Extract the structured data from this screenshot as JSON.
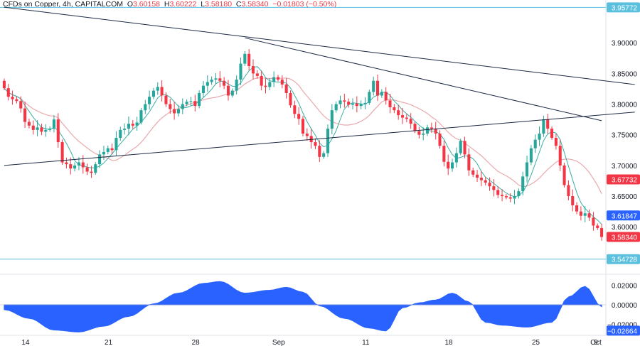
{
  "header": {
    "symbol": "CFDs on Copper, 4h, CAPITALCOM",
    "o_label": "O",
    "o_value": "3.60158",
    "h_label": "H",
    "h_value": "3.60222",
    "l_label": "L",
    "l_value": "3.58180",
    "c_label": "C",
    "c_value": "3.58340",
    "change": "−0.01803 (−0.50%)"
  },
  "colors": {
    "up": "#26a69a",
    "down": "#f23645",
    "ma_fast": "#26a69a",
    "ma_slow": "#e8a0a4",
    "trendline": "#1c2a44",
    "oscillator": "#2962ff",
    "level_line": "#5bc0de",
    "price_badge_red": "#f23645",
    "price_badge_blue": "#2962ff",
    "level_badge": "#5bc0de"
  },
  "chart_data": [
    {
      "type": "candlestick",
      "x_ticks": [
        "14",
        "21",
        "28",
        "Sep",
        "11",
        "18",
        "25",
        "Oct",
        "9"
      ],
      "y_ticks": [
        "3.90000",
        "3.85000",
        "3.80000",
        "3.75000",
        "3.70000",
        "3.65000",
        "3.60000"
      ],
      "ylim": [
        3.5435,
        3.9605
      ],
      "price_labels": [
        {
          "value": 3.95772,
          "text": "3.95772",
          "kind": "level"
        },
        {
          "value": 3.67732,
          "text": "3.67732",
          "kind": "red"
        },
        {
          "value": 3.61847,
          "text": "3.61847",
          "kind": "blue"
        },
        {
          "value": 3.5834,
          "text": "3.58340",
          "kind": "red"
        },
        {
          "value": 3.54728,
          "text": "3.54728",
          "kind": "level"
        }
      ],
      "horizontal_levels": [
        3.95772,
        3.54728
      ],
      "trendlines": [
        {
          "name": "upper-descending",
          "points": [
            [
              0,
              3.958
            ],
            [
              152,
              3.832
            ]
          ]
        },
        {
          "name": "ascending-support",
          "points": [
            [
              0,
              3.7
            ],
            [
              152,
              3.787
            ]
          ]
        },
        {
          "name": "descending-resistance",
          "points": [
            [
              58,
              3.908
            ],
            [
              144,
              3.773
            ]
          ]
        }
      ],
      "closes": [
        3.826,
        3.812,
        3.808,
        3.805,
        3.793,
        3.771,
        3.765,
        3.758,
        3.762,
        3.755,
        3.758,
        3.76,
        3.775,
        3.738,
        3.705,
        3.702,
        3.695,
        3.7,
        3.705,
        3.697,
        3.69,
        3.688,
        3.702,
        3.718,
        3.722,
        3.728,
        3.725,
        3.745,
        3.758,
        3.76,
        3.768,
        3.765,
        3.77,
        3.79,
        3.8,
        3.812,
        3.822,
        3.828,
        3.814,
        3.8,
        3.792,
        3.785,
        3.792,
        3.8,
        3.804,
        3.805,
        3.797,
        3.818,
        3.83,
        3.836,
        3.84,
        3.842,
        3.838,
        3.83,
        3.814,
        3.822,
        3.84,
        3.866,
        3.882,
        3.862,
        3.85,
        3.846,
        3.83,
        3.828,
        3.836,
        3.844,
        3.84,
        3.832,
        3.818,
        3.798,
        3.784,
        3.776,
        3.752,
        3.748,
        3.738,
        3.732,
        3.714,
        3.72,
        3.76,
        3.79,
        3.8,
        3.806,
        3.804,
        3.799,
        3.801,
        3.797,
        3.8,
        3.802,
        3.82,
        3.838,
        3.814,
        3.82,
        3.806,
        3.795,
        3.79,
        3.782,
        3.778,
        3.776,
        3.768,
        3.756,
        3.75,
        3.752,
        3.762,
        3.76,
        3.752,
        3.732,
        3.706,
        3.695,
        3.705,
        3.72,
        3.74,
        3.718,
        3.692,
        3.685,
        3.68,
        3.676,
        3.672,
        3.666,
        3.66,
        3.652,
        3.65,
        3.648,
        3.646,
        3.65,
        3.658,
        3.682,
        3.705,
        3.728,
        3.742,
        3.752,
        3.775,
        3.76,
        3.745,
        3.732,
        3.7,
        3.668,
        3.65,
        3.635,
        3.625,
        3.618,
        3.622,
        3.615,
        3.602,
        3.598,
        3.5834
      ]
    },
    {
      "type": "area",
      "y_ticks": [
        "0.02000",
        "0.00000",
        "−0.02000"
      ],
      "ylim": [
        -0.03,
        0.03
      ],
      "price_labels": [
        {
          "value": -0.02664,
          "text": "−0.02664",
          "kind": "blue"
        }
      ],
      "anchors": [
        [
          0,
          -0.005
        ],
        [
          6,
          -0.014
        ],
        [
          12,
          -0.026
        ],
        [
          18,
          -0.028
        ],
        [
          24,
          -0.022
        ],
        [
          30,
          -0.012
        ],
        [
          36,
          0.001
        ],
        [
          42,
          0.012
        ],
        [
          48,
          0.022
        ],
        [
          52,
          0.024
        ],
        [
          58,
          0.012
        ],
        [
          64,
          0.015
        ],
        [
          68,
          0.018
        ],
        [
          72,
          0.013
        ],
        [
          76,
          -0.001
        ],
        [
          82,
          -0.014
        ],
        [
          88,
          -0.024
        ],
        [
          92,
          -0.027
        ],
        [
          96,
          -0.003
        ],
        [
          100,
          0.002
        ],
        [
          104,
          0.005
        ],
        [
          108,
          0.012
        ],
        [
          112,
          0.003
        ],
        [
          116,
          -0.018
        ],
        [
          120,
          -0.021
        ],
        [
          126,
          -0.023
        ],
        [
          132,
          -0.018
        ],
        [
          136,
          0.008
        ],
        [
          140,
          0.019
        ],
        [
          144,
          -0.002
        ],
        [
          148,
          -0.016
        ],
        [
          152,
          -0.027
        ]
      ]
    }
  ]
}
